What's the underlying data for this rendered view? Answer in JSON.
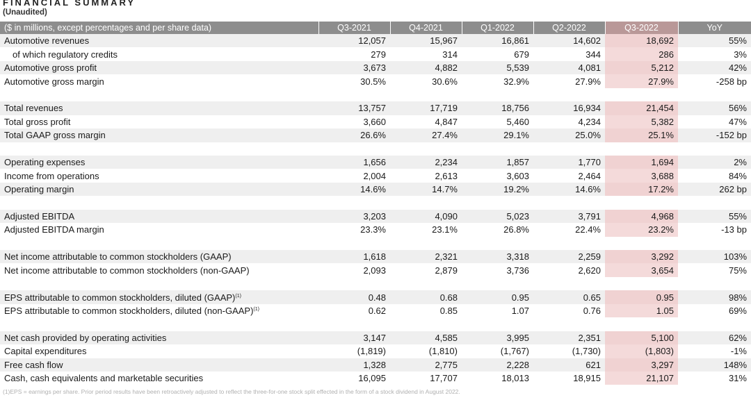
{
  "header": {
    "title": "FINANCIAL SUMMARY",
    "subtitle": "(Unaudited)"
  },
  "table": {
    "columns": [
      "($ in millions, except percentages and per share data)",
      "Q3-2021",
      "Q4-2021",
      "Q1-2022",
      "Q2-2022",
      "Q3-2022",
      "YoY"
    ],
    "groups": [
      [
        {
          "label": "Automotive revenues",
          "values": [
            "12,057",
            "15,967",
            "16,861",
            "14,602",
            "18,692",
            "55%"
          ]
        },
        {
          "label": "of which regulatory credits",
          "indent": true,
          "values": [
            "279",
            "314",
            "679",
            "344",
            "286",
            "3%"
          ]
        },
        {
          "label": "Automotive gross profit",
          "values": [
            "3,673",
            "4,882",
            "5,539",
            "4,081",
            "5,212",
            "42%"
          ]
        },
        {
          "label": "Automotive gross margin",
          "values": [
            "30.5%",
            "30.6%",
            "32.9%",
            "27.9%",
            "27.9%",
            "-258 bp"
          ]
        }
      ],
      [
        {
          "label": "Total revenues",
          "values": [
            "13,757",
            "17,719",
            "18,756",
            "16,934",
            "21,454",
            "56%"
          ]
        },
        {
          "label": "Total gross profit",
          "values": [
            "3,660",
            "4,847",
            "5,460",
            "4,234",
            "5,382",
            "47%"
          ]
        },
        {
          "label": "Total GAAP gross margin",
          "values": [
            "26.6%",
            "27.4%",
            "29.1%",
            "25.0%",
            "25.1%",
            "-152 bp"
          ]
        }
      ],
      [
        {
          "label": "Operating expenses",
          "values": [
            "1,656",
            "2,234",
            "1,857",
            "1,770",
            "1,694",
            "2%"
          ]
        },
        {
          "label": "Income from operations",
          "values": [
            "2,004",
            "2,613",
            "3,603",
            "2,464",
            "3,688",
            "84%"
          ]
        },
        {
          "label": "Operating margin",
          "values": [
            "14.6%",
            "14.7%",
            "19.2%",
            "14.6%",
            "17.2%",
            "262 bp"
          ]
        }
      ],
      [
        {
          "label": "Adjusted EBITDA",
          "values": [
            "3,203",
            "4,090",
            "5,023",
            "3,791",
            "4,968",
            "55%"
          ]
        },
        {
          "label": "Adjusted EBITDA margin",
          "values": [
            "23.3%",
            "23.1%",
            "26.8%",
            "22.4%",
            "23.2%",
            "-13 bp"
          ]
        }
      ],
      [
        {
          "label": "Net income attributable to common stockholders (GAAP)",
          "values": [
            "1,618",
            "2,321",
            "3,318",
            "2,259",
            "3,292",
            "103%"
          ]
        },
        {
          "label": "Net income attributable to common stockholders (non-GAAP)",
          "values": [
            "2,093",
            "2,879",
            "3,736",
            "2,620",
            "3,654",
            "75%"
          ]
        }
      ],
      [
        {
          "label": "EPS attributable to common stockholders, diluted (GAAP)",
          "sup": "(1)",
          "values": [
            "0.48",
            "0.68",
            "0.95",
            "0.65",
            "0.95",
            "98%"
          ]
        },
        {
          "label": "EPS attributable to common stockholders, diluted (non-GAAP)",
          "sup": "(1)",
          "values": [
            "0.62",
            "0.85",
            "1.07",
            "0.76",
            "1.05",
            "69%"
          ]
        }
      ],
      [
        {
          "label": "Net cash provided by operating activities",
          "values": [
            "3,147",
            "4,585",
            "3,995",
            "2,351",
            "5,100",
            "62%"
          ]
        },
        {
          "label": "Capital expenditures",
          "values": [
            "(1,819)",
            "(1,810)",
            "(1,767)",
            "(1,730)",
            "(1,803)",
            "-1%"
          ]
        },
        {
          "label": "Free cash flow",
          "values": [
            "1,328",
            "2,775",
            "2,228",
            "621",
            "3,297",
            "148%"
          ]
        },
        {
          "label": "Cash, cash equivalents and marketable securities",
          "values": [
            "16,095",
            "17,707",
            "18,013",
            "18,915",
            "21,107",
            "31%"
          ]
        }
      ]
    ]
  },
  "footnote": "(1)EPS = earnings per share. Prior period results have been retroactively adjusted to reflect the three-for-one stock split effected in the form of a stock dividend in August 2022.",
  "colors": {
    "header_bg": "#8d8d8d",
    "highlight_header_bg": "#b99898",
    "highlight_cell_bg": "#f4dada",
    "row_shade": "#efefef"
  }
}
